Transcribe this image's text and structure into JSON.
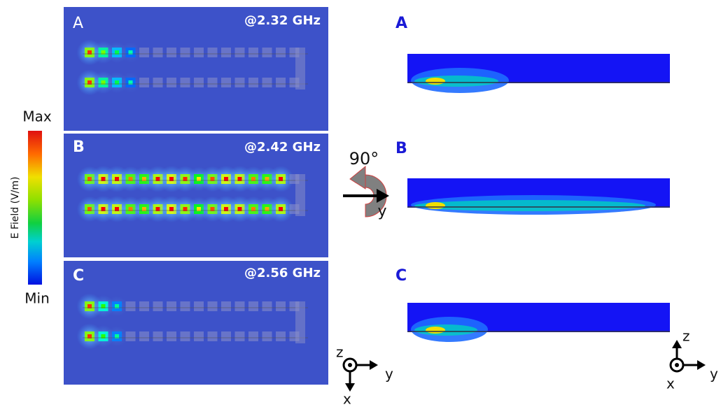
{
  "colorbar": {
    "max": "Max",
    "min": "Min",
    "label": "E Field (V/m)"
  },
  "top_views": [
    {
      "label": "A",
      "frequency": "@2.32 GHz"
    },
    {
      "label": "B",
      "frequency": "@2.42 GHz"
    },
    {
      "label": "C",
      "frequency": "@2.56 GHz"
    }
  ],
  "side_views": [
    {
      "label": "A"
    },
    {
      "label": "B"
    },
    {
      "label": "C"
    }
  ],
  "rotation": {
    "angle": "90°",
    "axis": "y"
  },
  "top_axes": {
    "z": "z",
    "y": "y",
    "x": "x"
  },
  "side_axes": {
    "z": "z",
    "y": "y",
    "x": "x"
  }
}
